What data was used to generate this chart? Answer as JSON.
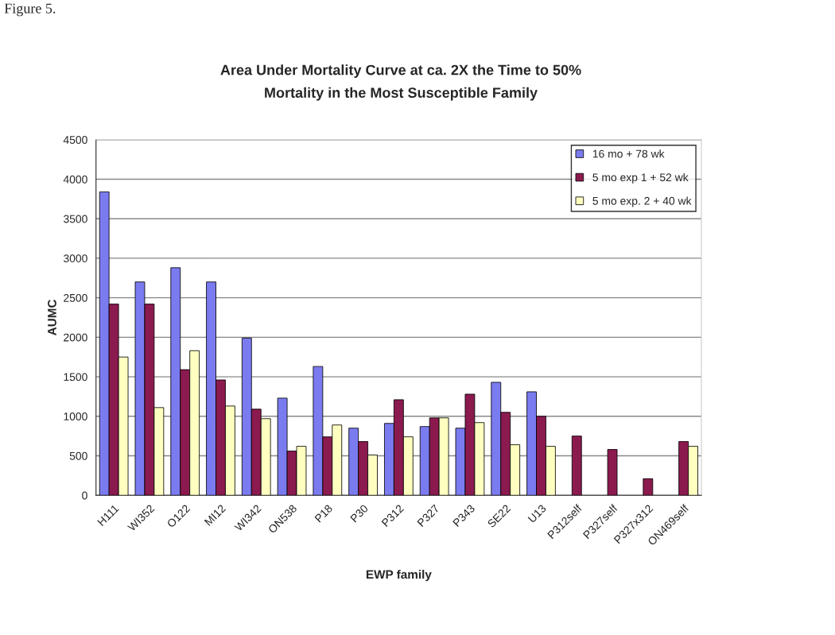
{
  "chart_data": {
    "type": "bar",
    "title": "Area Under Mortality Curve at ca. 2X the Time to 50%\nMortality in the Most Susceptible Family",
    "xlabel": "EWP family",
    "ylabel": "AUMC",
    "annotations": [
      "Figure 5."
    ],
    "categories": [
      "H111",
      "WI352",
      "O122",
      "MI12",
      "WI342",
      "ON538",
      "P18",
      "P30",
      "P312",
      "P327",
      "P343",
      "SE22",
      "U13",
      "P312self",
      "P327self",
      "P327x312",
      "ON469self"
    ],
    "series": [
      {
        "name": "16 mo + 78 wk",
        "color": "#7b7bf0",
        "values": [
          3840,
          2700,
          2880,
          2700,
          1990,
          1230,
          1630,
          850,
          910,
          870,
          850,
          1430,
          1310,
          null,
          null,
          null,
          null
        ]
      },
      {
        "name": "5 mo exp 1 + 52 wk",
        "color": "#8b1a4f",
        "values": [
          2420,
          2420,
          1590,
          1460,
          1090,
          560,
          740,
          680,
          1210,
          980,
          1280,
          1050,
          1000,
          750,
          580,
          210,
          680
        ]
      },
      {
        "name": "5 mo exp. 2 + 40 wk",
        "color": "#ffffc0",
        "values": [
          1750,
          1110,
          1830,
          1130,
          970,
          620,
          890,
          510,
          740,
          980,
          920,
          640,
          620,
          null,
          null,
          null,
          620
        ]
      }
    ],
    "ylim": [
      0,
      4500
    ],
    "yticks": [
      0,
      500,
      1000,
      1500,
      2000,
      2500,
      3000,
      3500,
      4000,
      4500
    ],
    "grid": "y",
    "legend": "top right"
  }
}
